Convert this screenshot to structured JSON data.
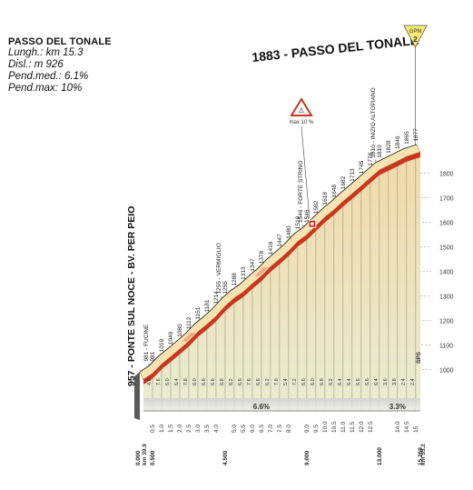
{
  "header": {
    "title": "PASSO DEL TONALE",
    "lines": [
      "Lungh.: km 15.3",
      "Disl.: m 926",
      "Pend.med.: 6.1%",
      "Pend.max: 10%"
    ]
  },
  "chart_data": {
    "type": "area",
    "title": "1883 - PASSO DEL TONALE",
    "summit_badge": "GPM",
    "summit_badge_number": "2",
    "max_gradient_label": "max 10 %",
    "start_label": "957 - PONTE SUL NOCE - BV. PER PEIO",
    "finish_label": "SPS",
    "km_start": "km 39.9",
    "km_end": "km 55.2",
    "y_ticks": [
      1000,
      1100,
      1200,
      1300,
      1400,
      1500,
      1600,
      1700,
      1800
    ],
    "ylim": [
      957,
      1883
    ],
    "xlim": [
      0,
      15.259
    ],
    "x_ticks": [
      "0.5",
      "1.0",
      "1.5",
      "2.0",
      "2.5",
      "3.0",
      "3.5",
      "4.0",
      "5.0",
      "5.5",
      "6.0",
      "6.5",
      "7.0",
      "7.5",
      "8.0",
      "9.0",
      "9.5",
      "10.0",
      "10.5",
      "11.0",
      "11.5",
      "12.0",
      "12.5",
      "14.0",
      "14.5",
      "15"
    ],
    "distance_marks": [
      "0.000",
      "0.500",
      "4.500",
      "9.000",
      "13.000",
      "15.259"
    ],
    "profile": [
      {
        "km": 0.0,
        "alt": 957
      },
      {
        "km": 0.5,
        "alt": 981
      },
      {
        "km": 1.0,
        "alt": 1019
      },
      {
        "km": 1.5,
        "alt": 1049
      },
      {
        "km": 2.0,
        "alt": 1080
      },
      {
        "km": 2.5,
        "alt": 1112
      },
      {
        "km": 3.0,
        "alt": 1151
      },
      {
        "km": 3.5,
        "alt": 1181
      },
      {
        "km": 4.0,
        "alt": 1214
      },
      {
        "km": 4.5,
        "alt": 1255
      },
      {
        "km": 5.0,
        "alt": 1288
      },
      {
        "km": 5.5,
        "alt": 1313
      },
      {
        "km": 6.0,
        "alt": 1347
      },
      {
        "km": 6.5,
        "alt": 1378
      },
      {
        "km": 7.0,
        "alt": 1416
      },
      {
        "km": 7.5,
        "alt": 1447
      },
      {
        "km": 8.0,
        "alt": 1480
      },
      {
        "km": 8.5,
        "alt": 1519
      },
      {
        "km": 9.0,
        "alt": 1546
      },
      {
        "km": 9.5,
        "alt": 1582
      },
      {
        "km": 10.0,
        "alt": 1618
      },
      {
        "km": 10.5,
        "alt": 1648
      },
      {
        "km": 11.0,
        "alt": 1682
      },
      {
        "km": 11.5,
        "alt": 1713
      },
      {
        "km": 12.0,
        "alt": 1745
      },
      {
        "km": 12.5,
        "alt": 1778
      },
      {
        "km": 13.0,
        "alt": 1810
      },
      {
        "km": 13.5,
        "alt": 1828
      },
      {
        "km": 14.0,
        "alt": 1846
      },
      {
        "km": 14.5,
        "alt": 1865
      },
      {
        "km": 15.0,
        "alt": 1877
      },
      {
        "km": 15.259,
        "alt": 1883
      }
    ],
    "altitude_labels": [
      "981",
      "1019",
      "1049",
      "1080",
      "1112",
      "1151",
      "1181",
      "1214",
      "1255",
      "1288",
      "1313",
      "1347",
      "1378",
      "1416",
      "1447",
      "1480",
      "1519",
      "1546",
      "1582",
      "1618",
      "1648",
      "1682",
      "1713",
      "1745",
      "1778",
      "1810",
      "1828",
      "1846",
      "1865",
      "1877"
    ],
    "place_labels": [
      {
        "km": 0.5,
        "text": "981 - FUCINE"
      },
      {
        "km": 4.5,
        "text": "1255 - VERMIGLIO"
      },
      {
        "km": 9.0,
        "text": "1546 - FORTE STRINO"
      },
      {
        "km": 13.0,
        "text": "1810 - INIZIO ALTOPIANO"
      }
    ],
    "segment_gradients": [
      "4.8",
      "7.6",
      "6.0",
      "6.4",
      "7.8",
      "6.0",
      "6.6",
      "6.6",
      "6.8",
      "6.2",
      "6.6",
      "7.6",
      "6.6",
      "6.2",
      "7.8",
      "5.4",
      "7.2",
      "6.6",
      "6.0",
      "6.8",
      "6.2",
      "6.4",
      "6.4",
      "6.6",
      "6.6",
      "6.4",
      "3.6",
      "3.8",
      "2.4",
      "2.4"
    ],
    "section_gradients": [
      {
        "km": 6.5,
        "text": "6.6%"
      },
      {
        "km": 14.0,
        "text": "3.3%"
      }
    ],
    "max_gradient_km": 9.25,
    "colors": {
      "profile_band": "#c8371d",
      "fill_top": "#f0d7a6",
      "fill_bottom": "#e9ecd2",
      "crest": "#f6e6b5",
      "base": "#9a9a9a"
    }
  }
}
